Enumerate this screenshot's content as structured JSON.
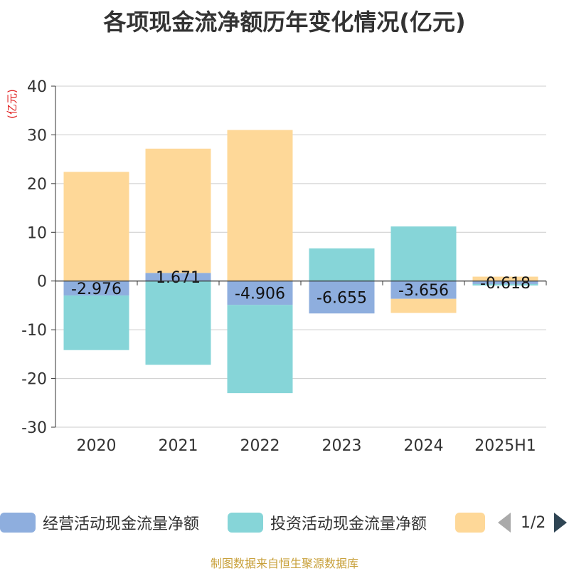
{
  "title": "各项现金流净额历年变化情况(亿元)",
  "source": "制图数据来自恒生聚源数据库",
  "colors": {
    "operating": "#8eaede",
    "investing": "#86d5d8",
    "financing": "#fed898",
    "grid": "#cccccc",
    "axis": "#333333",
    "unit": "#e02020"
  },
  "legend": {
    "items": [
      {
        "label": "经营活动现金流量净额",
        "color": "#8eaede"
      },
      {
        "label": "投资活动现金流量净额",
        "color": "#86d5d8"
      },
      {
        "label": "",
        "color": "#fed898"
      }
    ],
    "page_text": "1/2",
    "prev_icon": "triangle-left-icon",
    "next_icon": "triangle-right-icon"
  },
  "chart_data": {
    "type": "bar",
    "stacked": true,
    "title": "各项现金流净额历年变化情况(亿元)",
    "ylabel": "(亿元)",
    "ylim": [
      -30,
      40
    ],
    "yticks": [
      -30,
      -20,
      -10,
      0,
      10,
      20,
      30,
      40
    ],
    "grid": true,
    "legend_position": "bottom",
    "categories": [
      "2020",
      "2021",
      "2022",
      "2023",
      "2024",
      "2025H1"
    ],
    "series": [
      {
        "name": "经营活动现金流量净额",
        "values": [
          -2.976,
          1.671,
          -4.906,
          -6.655,
          -3.656,
          -0.618
        ],
        "labels": [
          "-2.976",
          "1.671",
          "-4.906",
          "-6.655",
          "-3.656",
          "-0.618"
        ]
      },
      {
        "name": "投资活动现金流量净额",
        "values": [
          -11.2,
          -17.2,
          -18.1,
          6.7,
          11.2,
          -0.3
        ]
      },
      {
        "values": [
          22.4,
          25.5,
          31.0,
          0.0,
          -2.9,
          0.9
        ]
      }
    ]
  }
}
